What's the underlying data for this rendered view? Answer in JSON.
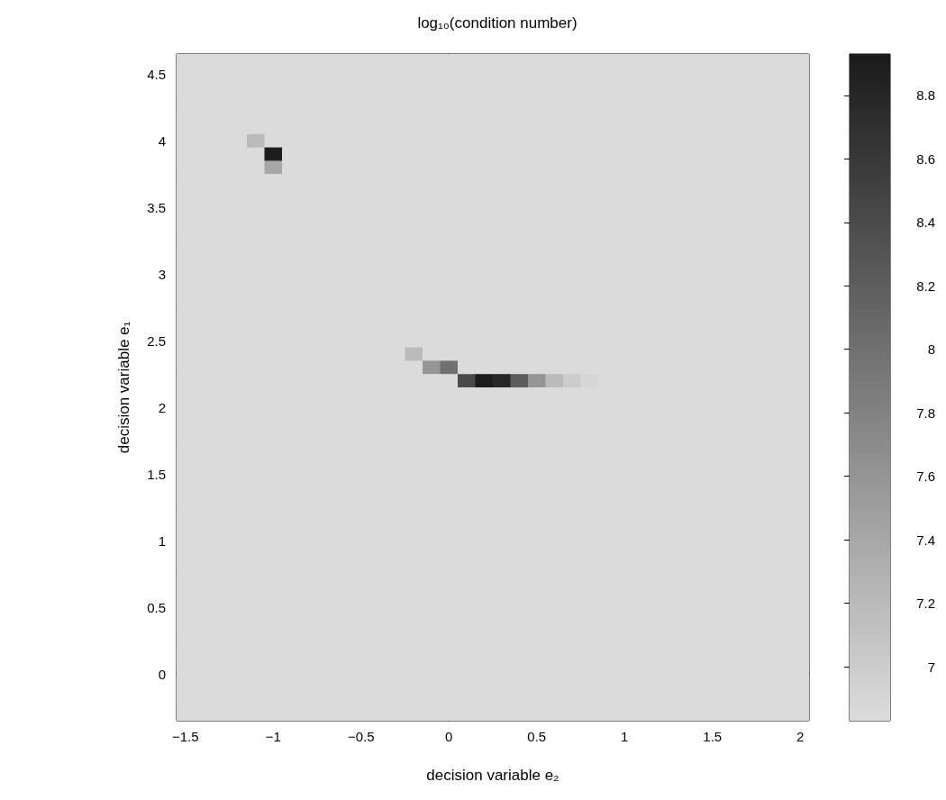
{
  "chart_data": {
    "type": "heatmap",
    "title": "log₁₀(condition number)",
    "xlabel": "decision variable e₂",
    "ylabel": "decision variable e₁",
    "x": [
      -1.5,
      -1.4,
      -1.3,
      -1.2,
      -1.1,
      -1,
      -0.9,
      -0.8,
      -0.7,
      -0.6,
      -0.5,
      -0.4,
      -0.3,
      -0.2,
      -0.1,
      0,
      0.1,
      0.2,
      0.3,
      0.4,
      0.5,
      0.6,
      0.7,
      0.8,
      0.9,
      1,
      1.1,
      1.2,
      1.3,
      1.4,
      1.5,
      1.6,
      1.7,
      1.8,
      1.9,
      2
    ],
    "y": [
      4.6,
      4.5,
      4.4,
      4.3,
      4.2,
      4.1,
      4,
      3.9,
      3.8,
      3.7,
      3.6,
      3.5,
      3.4,
      3.3,
      3.2,
      3.1,
      3,
      2.9,
      2.8,
      2.7,
      2.6,
      2.5,
      2.4,
      2.3,
      2.2,
      2.1,
      2,
      1.9,
      1.8,
      1.7,
      1.6,
      1.5,
      1.4,
      1.3,
      1.2,
      1.1,
      1,
      0.9,
      0.8,
      0.7,
      0.6,
      0.5,
      0.4,
      0.3,
      0.2,
      0.1,
      0,
      -0.1,
      -0.2,
      -0.3
    ],
    "xlim": [
      -1.55,
      2.05
    ],
    "ylim": [
      -0.35,
      4.65
    ],
    "xticks": [
      {
        "value": -1.5,
        "label": "−1.5"
      },
      {
        "value": -1,
        "label": "−1"
      },
      {
        "value": -0.5,
        "label": "−0.5"
      },
      0,
      0.5,
      1,
      1.5,
      2
    ],
    "yticks": [
      0,
      0.5,
      1,
      1.5,
      2,
      2.5,
      3,
      3.5,
      4,
      4.5
    ],
    "clim": [
      6.83,
      8.93
    ],
    "cticks": [
      7,
      7.2,
      7.4,
      7.6,
      7.8,
      8,
      8.2,
      8.4,
      8.6,
      8.8
    ],
    "cells": [
      [
        6.84,
        6.84,
        6.84,
        6.84,
        6.84,
        6.84,
        6.84,
        6.84,
        6.84,
        6.84,
        6.84,
        6.84,
        6.84,
        6.84,
        6.84,
        6.84,
        6.84,
        6.84,
        6.84,
        6.84,
        6.84,
        6.84,
        6.84,
        6.84,
        6.84,
        6.84,
        6.84,
        6.84,
        6.84,
        6.84,
        6.84,
        6.84,
        6.84,
        6.84,
        6.84,
        6.84
      ],
      [
        6.84,
        6.84,
        6.84,
        6.84,
        6.84,
        6.84,
        6.84,
        6.84,
        6.84,
        6.84,
        6.84,
        6.84,
        6.84,
        6.84,
        6.84,
        6.84,
        6.84,
        6.84,
        6.84,
        6.84,
        6.84,
        6.84,
        6.84,
        6.84,
        6.84,
        6.84,
        6.84,
        6.84,
        6.84,
        6.84,
        6.84,
        6.84,
        6.84,
        6.84,
        6.84,
        6.84
      ],
      [
        6.84,
        6.84,
        6.84,
        6.84,
        6.84,
        6.84,
        6.84,
        6.84,
        6.84,
        6.84,
        6.84,
        6.84,
        6.84,
        6.84,
        6.84,
        6.84,
        6.84,
        6.84,
        6.84,
        6.84,
        6.84,
        6.84,
        6.84,
        6.84,
        6.84,
        6.84,
        6.84,
        6.84,
        6.84,
        6.84,
        6.84,
        6.84,
        6.84,
        6.84,
        6.84,
        6.84
      ],
      [
        6.84,
        6.84,
        6.84,
        6.84,
        6.84,
        6.84,
        6.84,
        6.84,
        6.84,
        6.84,
        6.84,
        6.84,
        6.84,
        6.84,
        6.84,
        6.84,
        6.84,
        6.84,
        6.84,
        6.84,
        6.84,
        6.84,
        6.84,
        6.84,
        6.84,
        6.84,
        6.84,
        6.84,
        6.84,
        6.84,
        6.84,
        6.84,
        6.84,
        6.84,
        6.84,
        6.84
      ],
      [
        6.84,
        6.84,
        6.84,
        6.84,
        6.84,
        6.84,
        6.84,
        6.84,
        6.84,
        6.84,
        6.84,
        6.84,
        6.84,
        6.84,
        6.84,
        6.84,
        6.84,
        6.84,
        6.84,
        6.84,
        6.84,
        6.84,
        6.84,
        6.84,
        6.84,
        6.84,
        6.84,
        6.84,
        6.84,
        6.84,
        6.84,
        6.84,
        6.84,
        6.84,
        6.84,
        6.84
      ],
      [
        6.84,
        6.84,
        6.84,
        6.84,
        6.84,
        6.84,
        6.84,
        6.84,
        6.84,
        6.84,
        6.84,
        6.84,
        6.84,
        6.84,
        6.84,
        6.84,
        6.84,
        6.84,
        6.84,
        6.84,
        6.84,
        6.84,
        6.84,
        6.84,
        6.84,
        6.84,
        6.84,
        6.84,
        6.84,
        6.84,
        6.84,
        6.84,
        6.84,
        6.84,
        6.84,
        6.84
      ],
      [
        6.84,
        6.84,
        6.84,
        6.84,
        7.2,
        6.84,
        6.84,
        6.84,
        6.84,
        6.84,
        6.84,
        6.84,
        6.84,
        6.84,
        6.84,
        6.84,
        6.84,
        6.84,
        6.84,
        6.84,
        6.84,
        6.84,
        6.84,
        6.84,
        6.84,
        6.84,
        6.84,
        6.84,
        6.84,
        6.84,
        6.84,
        6.84,
        6.84,
        6.84,
        6.84,
        6.84
      ],
      [
        6.84,
        6.84,
        6.84,
        6.84,
        6.84,
        8.9,
        6.84,
        6.84,
        6.84,
        6.84,
        6.84,
        6.84,
        6.84,
        6.84,
        6.84,
        6.84,
        6.84,
        6.84,
        6.84,
        6.84,
        6.84,
        6.84,
        6.84,
        6.84,
        6.84,
        6.84,
        6.84,
        6.84,
        6.84,
        6.84,
        6.84,
        6.84,
        6.84,
        6.84,
        6.84,
        6.84
      ],
      [
        6.84,
        6.84,
        6.84,
        6.84,
        6.84,
        7.4,
        6.84,
        6.84,
        6.84,
        6.84,
        6.84,
        6.84,
        6.84,
        6.84,
        6.84,
        6.84,
        6.84,
        6.84,
        6.84,
        6.84,
        6.84,
        6.84,
        6.84,
        6.84,
        6.84,
        6.84,
        6.84,
        6.84,
        6.84,
        6.84,
        6.84,
        6.84,
        6.84,
        6.84,
        6.84,
        6.84
      ],
      [
        6.84,
        6.84,
        6.84,
        6.84,
        6.84,
        6.84,
        6.84,
        6.84,
        6.84,
        6.84,
        6.84,
        6.84,
        6.84,
        6.84,
        6.84,
        6.84,
        6.84,
        6.84,
        6.84,
        6.84,
        6.84,
        6.84,
        6.84,
        6.84,
        6.84,
        6.84,
        6.84,
        6.84,
        6.84,
        6.84,
        6.84,
        6.84,
        6.84,
        6.84,
        6.84,
        6.84
      ],
      [
        6.84,
        6.84,
        6.84,
        6.84,
        6.84,
        6.84,
        6.84,
        6.84,
        6.84,
        6.84,
        6.84,
        6.84,
        6.84,
        6.84,
        6.84,
        6.84,
        6.84,
        6.84,
        6.84,
        6.84,
        6.84,
        6.84,
        6.84,
        6.84,
        6.84,
        6.84,
        6.84,
        6.84,
        6.84,
        6.84,
        6.84,
        6.84,
        6.84,
        6.84,
        6.84,
        6.84
      ],
      [
        6.84,
        6.84,
        6.84,
        6.84,
        6.84,
        6.84,
        6.84,
        6.84,
        6.84,
        6.84,
        6.84,
        6.84,
        6.84,
        6.84,
        6.84,
        6.84,
        6.84,
        6.84,
        6.84,
        6.84,
        6.84,
        6.84,
        6.84,
        6.84,
        6.84,
        6.84,
        6.84,
        6.84,
        6.84,
        6.84,
        6.84,
        6.84,
        6.84,
        6.84,
        6.84,
        6.84
      ],
      [
        6.84,
        6.84,
        6.84,
        6.84,
        6.84,
        6.84,
        6.84,
        6.84,
        6.84,
        6.84,
        6.84,
        6.84,
        6.84,
        6.84,
        6.84,
        6.84,
        6.84,
        6.84,
        6.84,
        6.84,
        6.84,
        6.84,
        6.84,
        6.84,
        6.84,
        6.84,
        6.84,
        6.84,
        6.84,
        6.84,
        6.84,
        6.84,
        6.84,
        6.84,
        6.84,
        6.84
      ],
      [
        6.84,
        6.84,
        6.84,
        6.84,
        6.84,
        6.84,
        6.84,
        6.84,
        6.84,
        6.84,
        6.84,
        6.84,
        6.84,
        6.84,
        6.84,
        6.84,
        6.84,
        6.84,
        6.84,
        6.84,
        6.84,
        6.84,
        6.84,
        6.84,
        6.84,
        6.84,
        6.84,
        6.84,
        6.84,
        6.84,
        6.84,
        6.84,
        6.84,
        6.84,
        6.84,
        6.84
      ],
      [
        6.84,
        6.84,
        6.84,
        6.84,
        6.84,
        6.84,
        6.84,
        6.84,
        6.84,
        6.84,
        6.84,
        6.84,
        6.84,
        6.84,
        6.84,
        6.84,
        6.84,
        6.84,
        6.84,
        6.84,
        6.84,
        6.84,
        6.84,
        6.84,
        6.84,
        6.84,
        6.84,
        6.84,
        6.84,
        6.84,
        6.84,
        6.84,
        6.84,
        6.84,
        6.84,
        6.84
      ],
      [
        6.84,
        6.84,
        6.84,
        6.84,
        6.84,
        6.84,
        6.84,
        6.84,
        6.84,
        6.84,
        6.84,
        6.84,
        6.84,
        6.84,
        6.84,
        6.84,
        6.84,
        6.84,
        6.84,
        6.84,
        6.84,
        6.84,
        6.84,
        6.84,
        6.84,
        6.84,
        6.84,
        6.84,
        6.84,
        6.84,
        6.84,
        6.84,
        6.84,
        6.84,
        6.84,
        6.84
      ],
      [
        6.84,
        6.84,
        6.84,
        6.84,
        6.84,
        6.84,
        6.84,
        6.84,
        6.84,
        6.84,
        6.84,
        6.84,
        6.84,
        6.84,
        6.84,
        6.84,
        6.84,
        6.84,
        6.84,
        6.84,
        6.84,
        6.84,
        6.84,
        6.84,
        6.84,
        6.84,
        6.84,
        6.84,
        6.84,
        6.84,
        6.84,
        6.84,
        6.84,
        6.84,
        6.84,
        6.84
      ],
      [
        6.84,
        6.84,
        6.84,
        6.84,
        6.84,
        6.84,
        6.84,
        6.84,
        6.84,
        6.84,
        6.84,
        6.84,
        6.84,
        6.84,
        6.84,
        6.84,
        6.84,
        6.84,
        6.84,
        6.84,
        6.84,
        6.84,
        6.84,
        6.84,
        6.84,
        6.84,
        6.84,
        6.84,
        6.84,
        6.84,
        6.84,
        6.84,
        6.84,
        6.84,
        6.84,
        6.84
      ],
      [
        6.84,
        6.84,
        6.84,
        6.84,
        6.84,
        6.84,
        6.84,
        6.84,
        6.84,
        6.84,
        6.84,
        6.84,
        6.84,
        6.84,
        6.84,
        6.84,
        6.84,
        6.84,
        6.84,
        6.84,
        6.84,
        6.84,
        6.84,
        6.84,
        6.84,
        6.84,
        6.84,
        6.84,
        6.84,
        6.84,
        6.84,
        6.84,
        6.84,
        6.84,
        6.84,
        6.84
      ],
      [
        6.84,
        6.84,
        6.84,
        6.84,
        6.84,
        6.84,
        6.84,
        6.84,
        6.84,
        6.84,
        6.84,
        6.84,
        6.84,
        6.84,
        6.84,
        6.84,
        6.84,
        6.84,
        6.84,
        6.84,
        6.84,
        6.84,
        6.84,
        6.84,
        6.84,
        6.84,
        6.84,
        6.84,
        6.84,
        6.84,
        6.84,
        6.84,
        6.84,
        6.84,
        6.84,
        6.84
      ],
      [
        6.84,
        6.84,
        6.84,
        6.84,
        6.84,
        6.84,
        6.84,
        6.84,
        6.84,
        6.84,
        6.84,
        6.84,
        6.84,
        6.84,
        6.84,
        6.84,
        6.84,
        6.84,
        6.84,
        6.84,
        6.84,
        6.84,
        6.84,
        6.84,
        6.84,
        6.84,
        6.84,
        6.84,
        6.84,
        6.84,
        6.84,
        6.84,
        6.84,
        6.84,
        6.84,
        6.84
      ],
      [
        6.84,
        6.84,
        6.84,
        6.84,
        6.84,
        6.84,
        6.84,
        6.84,
        6.84,
        6.84,
        6.84,
        6.84,
        6.84,
        6.84,
        6.84,
        6.84,
        6.84,
        6.84,
        6.84,
        6.84,
        6.84,
        6.84,
        6.84,
        6.84,
        6.84,
        6.84,
        6.84,
        6.84,
        6.84,
        6.84,
        6.84,
        6.84,
        6.84,
        6.84,
        6.84,
        6.84
      ],
      [
        6.84,
        6.84,
        6.84,
        6.84,
        6.84,
        6.84,
        6.84,
        6.84,
        6.84,
        6.84,
        6.84,
        6.84,
        6.84,
        7.2,
        6.84,
        6.84,
        6.84,
        6.84,
        6.84,
        6.84,
        6.84,
        6.84,
        6.84,
        6.84,
        6.84,
        6.84,
        6.84,
        6.84,
        6.84,
        6.84,
        6.84,
        6.84,
        6.84,
        6.84,
        6.84,
        6.84
      ],
      [
        6.84,
        6.84,
        6.84,
        6.84,
        6.84,
        6.84,
        6.84,
        6.84,
        6.84,
        6.84,
        6.84,
        6.84,
        6.84,
        6.84,
        7.6,
        8.0,
        6.84,
        6.84,
        6.84,
        6.84,
        6.84,
        6.84,
        6.84,
        6.84,
        6.84,
        6.84,
        6.84,
        6.84,
        6.84,
        6.84,
        6.84,
        6.84,
        6.84,
        6.84,
        6.84,
        6.84
      ],
      [
        6.84,
        6.84,
        6.84,
        6.84,
        6.84,
        6.84,
        6.84,
        6.84,
        6.84,
        6.84,
        6.84,
        6.84,
        6.84,
        6.84,
        6.84,
        6.84,
        8.4,
        8.9,
        8.8,
        8.2,
        7.6,
        7.2,
        7.0,
        6.9,
        6.84,
        6.84,
        6.84,
        6.84,
        6.84,
        6.84,
        6.84,
        6.84,
        6.84,
        6.84,
        6.84,
        6.84
      ],
      [
        6.84,
        6.84,
        6.84,
        6.84,
        6.84,
        6.84,
        6.84,
        6.84,
        6.84,
        6.84,
        6.84,
        6.84,
        6.84,
        6.84,
        6.84,
        6.84,
        6.84,
        6.84,
        6.84,
        6.84,
        6.84,
        6.84,
        6.84,
        6.84,
        6.84,
        6.84,
        6.84,
        6.84,
        6.84,
        6.84,
        6.84,
        6.84,
        6.84,
        6.84,
        6.84,
        6.84
      ],
      [
        6.84,
        6.84,
        6.84,
        6.84,
        6.84,
        6.84,
        6.84,
        6.84,
        6.84,
        6.84,
        6.84,
        6.84,
        6.84,
        6.84,
        6.84,
        6.84,
        6.84,
        6.84,
        6.84,
        6.84,
        6.84,
        6.84,
        6.84,
        6.84,
        6.84,
        6.84,
        6.84,
        6.84,
        6.84,
        6.84,
        6.84,
        6.84,
        6.84,
        6.84,
        6.84,
        6.84
      ],
      [
        6.84,
        6.84,
        6.84,
        6.84,
        6.84,
        6.84,
        6.84,
        6.84,
        6.84,
        6.84,
        6.84,
        6.84,
        6.84,
        6.84,
        6.84,
        6.84,
        6.84,
        6.84,
        6.84,
        6.84,
        6.84,
        6.84,
        6.84,
        6.84,
        6.84,
        6.84,
        6.84,
        6.84,
        6.84,
        6.84,
        6.84,
        6.84,
        6.84,
        6.84,
        6.84,
        6.84
      ],
      [
        6.84,
        6.84,
        6.84,
        6.84,
        6.84,
        6.84,
        6.84,
        6.84,
        6.84,
        6.84,
        6.84,
        6.84,
        6.84,
        6.84,
        6.84,
        6.84,
        6.84,
        6.84,
        6.84,
        6.84,
        6.84,
        6.84,
        6.84,
        6.84,
        6.84,
        6.84,
        6.84,
        6.84,
        6.84,
        6.84,
        6.84,
        6.84,
        6.84,
        6.84,
        6.84,
        6.84
      ],
      [
        6.84,
        6.84,
        6.84,
        6.84,
        6.84,
        6.84,
        6.84,
        6.84,
        6.84,
        6.84,
        6.84,
        6.84,
        6.84,
        6.84,
        6.84,
        6.84,
        6.84,
        6.84,
        6.84,
        6.84,
        6.84,
        6.84,
        6.84,
        6.84,
        6.84,
        6.84,
        6.84,
        6.84,
        6.84,
        6.84,
        6.84,
        6.84,
        6.84,
        6.84,
        6.84,
        6.84
      ],
      [
        6.84,
        6.84,
        6.84,
        6.84,
        6.84,
        6.84,
        6.84,
        6.84,
        6.84,
        6.84,
        6.84,
        6.84,
        6.84,
        6.84,
        6.84,
        6.84,
        6.84,
        6.84,
        6.84,
        6.84,
        6.84,
        6.84,
        6.84,
        6.84,
        6.84,
        6.84,
        6.84,
        6.84,
        6.84,
        6.84,
        6.84,
        6.84,
        6.84,
        6.84,
        6.84,
        6.84
      ],
      [
        6.84,
        6.84,
        6.84,
        6.84,
        6.84,
        6.84,
        6.84,
        6.84,
        6.84,
        6.84,
        6.84,
        6.84,
        6.84,
        6.84,
        6.84,
        6.84,
        6.84,
        6.84,
        6.84,
        6.84,
        6.84,
        6.84,
        6.84,
        6.84,
        6.84,
        6.84,
        6.84,
        6.84,
        6.84,
        6.84,
        6.84,
        6.84,
        6.84,
        6.84,
        6.84,
        6.84
      ],
      [
        6.84,
        6.84,
        6.84,
        6.84,
        6.84,
        6.84,
        6.84,
        6.84,
        6.84,
        6.84,
        6.84,
        6.84,
        6.84,
        6.84,
        6.84,
        6.84,
        6.84,
        6.84,
        6.84,
        6.84,
        6.84,
        6.84,
        6.84,
        6.84,
        6.84,
        6.84,
        6.84,
        6.84,
        6.84,
        6.84,
        6.84,
        6.84,
        6.84,
        6.84,
        6.84,
        6.84
      ],
      [
        6.84,
        6.84,
        6.84,
        6.84,
        6.84,
        6.84,
        6.84,
        6.84,
        6.84,
        6.84,
        6.84,
        6.84,
        6.84,
        6.84,
        6.84,
        6.84,
        6.84,
        6.84,
        6.84,
        6.84,
        6.84,
        6.84,
        6.84,
        6.84,
        6.84,
        6.84,
        6.84,
        6.84,
        6.84,
        6.84,
        6.84,
        6.84,
        6.84,
        6.84,
        6.84,
        6.84
      ],
      [
        6.84,
        6.84,
        6.84,
        6.84,
        6.84,
        6.84,
        6.84,
        6.84,
        6.84,
        6.84,
        6.84,
        6.84,
        6.84,
        6.84,
        6.84,
        6.84,
        6.84,
        6.84,
        6.84,
        6.84,
        6.84,
        6.84,
        6.84,
        6.84,
        6.84,
        6.84,
        6.84,
        6.84,
        6.84,
        6.84,
        6.84,
        6.84,
        6.84,
        6.84,
        6.84,
        6.84
      ],
      [
        6.84,
        6.84,
        6.84,
        6.84,
        6.84,
        6.84,
        6.84,
        6.84,
        6.84,
        6.84,
        6.84,
        6.84,
        6.84,
        6.84,
        6.84,
        6.84,
        6.84,
        6.84,
        6.84,
        6.84,
        6.84,
        6.84,
        6.84,
        6.84,
        6.84,
        6.84,
        6.84,
        6.84,
        6.84,
        6.84,
        6.84,
        6.84,
        6.84,
        6.84,
        6.84,
        6.84
      ],
      [
        6.84,
        6.84,
        6.84,
        6.84,
        6.84,
        6.84,
        6.84,
        6.84,
        6.84,
        6.84,
        6.84,
        6.84,
        6.84,
        6.84,
        6.84,
        6.84,
        6.84,
        6.84,
        6.84,
        6.84,
        6.84,
        6.84,
        6.84,
        6.84,
        6.84,
        6.84,
        6.84,
        6.84,
        6.84,
        6.84,
        6.84,
        6.84,
        6.84,
        6.84,
        6.84,
        6.84
      ],
      [
        6.84,
        6.84,
        6.84,
        6.84,
        6.84,
        6.84,
        6.84,
        6.84,
        6.84,
        6.84,
        6.84,
        6.84,
        6.84,
        6.84,
        6.84,
        6.84,
        6.84,
        6.84,
        6.84,
        6.84,
        6.84,
        6.84,
        6.84,
        6.84,
        6.84,
        6.84,
        6.84,
        6.84,
        6.84,
        6.84,
        6.84,
        6.84,
        6.84,
        6.84,
        6.84,
        6.84
      ],
      [
        6.84,
        6.84,
        6.84,
        6.84,
        6.84,
        6.84,
        6.84,
        6.84,
        6.84,
        6.84,
        6.84,
        6.84,
        6.84,
        6.84,
        6.84,
        6.84,
        6.84,
        6.84,
        6.84,
        6.84,
        6.84,
        6.84,
        6.84,
        6.84,
        6.84,
        6.84,
        6.84,
        6.84,
        6.84,
        6.84,
        6.84,
        6.84,
        6.84,
        6.84,
        6.84,
        6.84
      ],
      [
        6.84,
        6.84,
        6.84,
        6.84,
        6.84,
        6.84,
        6.84,
        6.84,
        6.84,
        6.84,
        6.84,
        6.84,
        6.84,
        6.84,
        6.84,
        6.84,
        6.84,
        6.84,
        6.84,
        6.84,
        6.84,
        6.84,
        6.84,
        6.84,
        6.84,
        6.84,
        6.84,
        6.84,
        6.84,
        6.84,
        6.84,
        6.84,
        6.84,
        6.84,
        6.84,
        6.84
      ],
      [
        6.84,
        6.84,
        6.84,
        6.84,
        6.84,
        6.84,
        6.84,
        6.84,
        6.84,
        6.84,
        6.84,
        6.84,
        6.84,
        6.84,
        6.84,
        6.84,
        6.84,
        6.84,
        6.84,
        6.84,
        6.84,
        6.84,
        6.84,
        6.84,
        6.84,
        6.84,
        6.84,
        6.84,
        6.84,
        6.84,
        6.84,
        6.84,
        6.84,
        6.84,
        6.84,
        6.84
      ],
      [
        6.84,
        6.84,
        6.84,
        6.84,
        6.84,
        6.84,
        6.84,
        6.84,
        6.84,
        6.84,
        6.84,
        6.84,
        6.84,
        6.84,
        6.84,
        6.84,
        6.84,
        6.84,
        6.84,
        6.84,
        6.84,
        6.84,
        6.84,
        6.84,
        6.84,
        6.84,
        6.84,
        6.84,
        6.84,
        6.84,
        6.84,
        6.84,
        6.84,
        6.84,
        6.84,
        6.84
      ],
      [
        6.84,
        6.84,
        6.84,
        6.84,
        6.84,
        6.84,
        6.84,
        6.84,
        6.84,
        6.84,
        6.84,
        6.84,
        6.84,
        6.84,
        6.84,
        6.84,
        6.84,
        6.84,
        6.84,
        6.84,
        6.84,
        6.84,
        6.84,
        6.84,
        6.84,
        6.84,
        6.84,
        6.84,
        6.84,
        6.84,
        6.84,
        6.84,
        6.84,
        6.84,
        6.84,
        6.84
      ],
      [
        6.84,
        6.84,
        6.84,
        6.84,
        6.84,
        6.84,
        6.84,
        6.84,
        6.84,
        6.84,
        6.84,
        6.84,
        6.84,
        6.84,
        6.84,
        6.84,
        6.84,
        6.84,
        6.84,
        6.84,
        6.84,
        6.84,
        6.84,
        6.84,
        6.84,
        6.84,
        6.84,
        6.84,
        6.84,
        6.84,
        6.84,
        6.84,
        6.84,
        6.84,
        6.84,
        6.84
      ],
      [
        6.84,
        6.84,
        6.84,
        6.84,
        6.84,
        6.84,
        6.84,
        6.84,
        6.84,
        6.84,
        6.84,
        6.84,
        6.84,
        6.84,
        6.84,
        6.84,
        6.84,
        6.84,
        6.84,
        6.84,
        6.84,
        6.84,
        6.84,
        6.84,
        6.84,
        6.84,
        6.84,
        6.84,
        6.84,
        6.84,
        6.84,
        6.84,
        6.84,
        6.84,
        6.84,
        6.84
      ],
      [
        6.84,
        6.84,
        6.84,
        6.84,
        6.84,
        6.84,
        6.84,
        6.84,
        6.84,
        6.84,
        6.84,
        6.84,
        6.84,
        6.84,
        6.84,
        6.84,
        6.84,
        6.84,
        6.84,
        6.84,
        6.84,
        6.84,
        6.84,
        6.84,
        6.84,
        6.84,
        6.84,
        6.84,
        6.84,
        6.84,
        6.84,
        6.84,
        6.84,
        6.84,
        6.84,
        6.84
      ],
      [
        6.84,
        6.84,
        6.84,
        6.84,
        6.84,
        6.84,
        6.84,
        6.84,
        6.84,
        6.84,
        6.84,
        6.84,
        6.84,
        6.84,
        6.84,
        6.84,
        6.84,
        6.84,
        6.84,
        6.84,
        6.84,
        6.84,
        6.84,
        6.84,
        6.84,
        6.84,
        6.84,
        6.84,
        6.84,
        6.84,
        6.84,
        6.84,
        6.84,
        6.84,
        6.84,
        6.84
      ],
      [
        6.84,
        6.84,
        6.84,
        6.84,
        6.84,
        6.84,
        6.84,
        6.84,
        6.84,
        6.84,
        6.84,
        6.84,
        6.84,
        6.84,
        6.84,
        6.84,
        6.84,
        6.84,
        6.84,
        6.84,
        6.84,
        6.84,
        6.84,
        6.84,
        6.84,
        6.84,
        6.84,
        6.84,
        6.84,
        6.84,
        6.84,
        6.84,
        6.84,
        6.84,
        6.84,
        6.84
      ],
      [
        6.84,
        6.84,
        6.84,
        6.84,
        6.84,
        6.84,
        6.84,
        6.84,
        6.84,
        6.84,
        6.84,
        6.84,
        6.84,
        6.84,
        6.84,
        6.84,
        6.84,
        6.84,
        6.84,
        6.84,
        6.84,
        6.84,
        6.84,
        6.84,
        6.84,
        6.84,
        6.84,
        6.84,
        6.84,
        6.84,
        6.84,
        6.84,
        6.84,
        6.84,
        6.84,
        6.84
      ],
      [
        6.84,
        6.84,
        6.84,
        6.84,
        6.84,
        6.84,
        6.84,
        6.84,
        6.84,
        6.84,
        6.84,
        6.84,
        6.84,
        6.84,
        6.84,
        6.84,
        6.84,
        6.84,
        6.84,
        6.84,
        6.84,
        6.84,
        6.84,
        6.84,
        6.84,
        6.84,
        6.84,
        6.84,
        6.84,
        6.84,
        6.84,
        6.84,
        6.84,
        6.84,
        6.84,
        6.84
      ]
    ]
  }
}
